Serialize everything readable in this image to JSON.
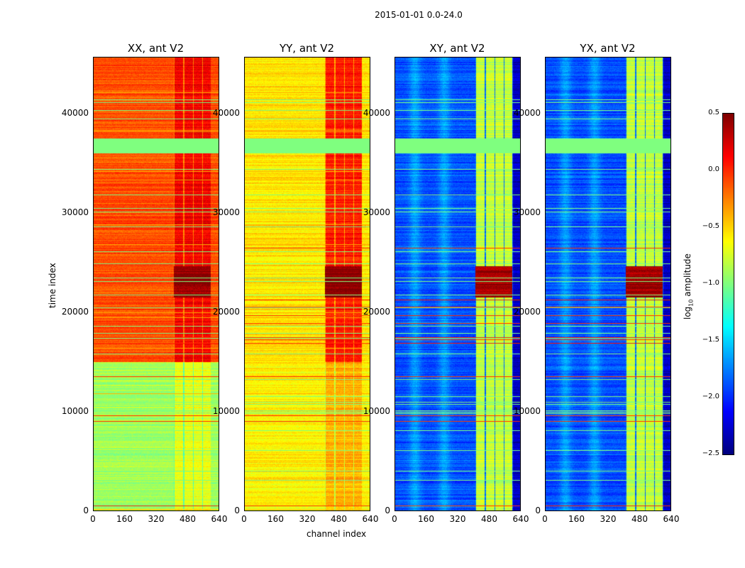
{
  "chart_data": {
    "type": "heatmap",
    "title": "2015-01-01 0.0-24.0",
    "xlabel": "channel index",
    "ylabel": "time index",
    "xlim": [
      0,
      640
    ],
    "ylim": [
      0,
      45700
    ],
    "xticks": [
      "0",
      "160",
      "320",
      "480",
      "640"
    ],
    "yticks": [
      "0",
      "10000",
      "20000",
      "30000",
      "40000"
    ],
    "colormap": "jet",
    "colorbar": {
      "label_main": "log",
      "label_sub": "10",
      "label_rest": " amplitude",
      "range": [
        -2.5,
        0.5
      ],
      "ticks": [
        "0.5",
        "0.0",
        "−0.5",
        "−1.0",
        "−1.5",
        "−2.0",
        "−2.5"
      ],
      "tick_values": [
        0.5,
        0.0,
        -0.5,
        -1.0,
        -1.5,
        -2.0,
        -2.5
      ]
    },
    "panels": [
      {
        "title": "XX, ant V2",
        "low_time_level": -0.9,
        "high_time_level": -0.1,
        "high_channel_level": 0.15,
        "burst_level": 0.45,
        "flag_level": -1.0
      },
      {
        "title": "YY, ant V2",
        "low_time_level": -0.6,
        "high_time_level": -0.55,
        "high_channel_level": 0.05,
        "burst_level": 0.5,
        "flag_level": -1.0
      },
      {
        "title": "XY, ant V2",
        "low_time_level": -1.9,
        "high_time_level": -1.9,
        "high_channel_level": -0.8,
        "burst_level": 0.4,
        "flag_level": -1.0
      },
      {
        "title": "YX, ant V2",
        "low_time_level": -1.9,
        "high_time_level": -1.9,
        "high_channel_level": -0.8,
        "burst_level": 0.4,
        "flag_level": -1.0
      }
    ]
  }
}
